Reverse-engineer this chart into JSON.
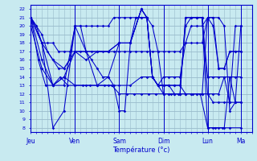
{
  "xlabel": "Température (°c)",
  "bg_color": "#c8eaf0",
  "grid_color": "#99bbcc",
  "line_color": "#0000cc",
  "ylim": [
    7.5,
    22.5
  ],
  "yticks": [
    8,
    9,
    10,
    11,
    12,
    13,
    14,
    15,
    16,
    17,
    18,
    19,
    20,
    21,
    22
  ],
  "day_labels": [
    "Jeu",
    "Ven",
    "Sam",
    "Dim",
    "Lun",
    "Ma"
  ],
  "day_x": [
    0,
    48,
    96,
    144,
    192,
    228
  ],
  "xlim": [
    0,
    240
  ],
  "series": [
    [
      [
        0,
        21
      ],
      [
        6,
        20
      ],
      [
        12,
        19
      ],
      [
        18,
        17
      ],
      [
        24,
        16
      ],
      [
        30,
        15
      ],
      [
        36,
        15
      ],
      [
        42,
        16
      ],
      [
        48,
        20
      ],
      [
        54,
        20
      ],
      [
        60,
        20
      ],
      [
        66,
        20
      ],
      [
        72,
        20
      ],
      [
        78,
        20
      ],
      [
        84,
        20
      ],
      [
        90,
        21
      ],
      [
        96,
        21
      ],
      [
        102,
        21
      ],
      [
        108,
        21
      ],
      [
        114,
        21
      ],
      [
        120,
        21
      ],
      [
        126,
        21
      ],
      [
        132,
        20
      ],
      [
        138,
        17
      ],
      [
        144,
        12
      ],
      [
        150,
        12
      ],
      [
        156,
        12
      ],
      [
        162,
        12
      ],
      [
        168,
        12
      ],
      [
        174,
        12
      ],
      [
        180,
        12
      ],
      [
        186,
        12
      ],
      [
        192,
        12
      ],
      [
        198,
        12
      ],
      [
        204,
        12
      ],
      [
        210,
        14
      ],
      [
        216,
        14
      ],
      [
        222,
        14
      ],
      [
        228,
        14
      ]
    ],
    [
      [
        0,
        21
      ],
      [
        6,
        20
      ],
      [
        12,
        18
      ],
      [
        18,
        18
      ],
      [
        24,
        18
      ],
      [
        30,
        17
      ],
      [
        36,
        17
      ],
      [
        42,
        17
      ],
      [
        48,
        17
      ],
      [
        54,
        17
      ],
      [
        60,
        17
      ],
      [
        66,
        17
      ],
      [
        72,
        17
      ],
      [
        78,
        17
      ],
      [
        84,
        17
      ],
      [
        90,
        17
      ],
      [
        96,
        17
      ],
      [
        102,
        17
      ],
      [
        108,
        17
      ],
      [
        114,
        17
      ],
      [
        120,
        17
      ],
      [
        126,
        17
      ],
      [
        132,
        17
      ],
      [
        138,
        17
      ],
      [
        144,
        17
      ],
      [
        150,
        17
      ],
      [
        156,
        17
      ],
      [
        162,
        17
      ],
      [
        168,
        18
      ],
      [
        174,
        18
      ],
      [
        180,
        18
      ],
      [
        186,
        18
      ],
      [
        192,
        21
      ],
      [
        198,
        21
      ],
      [
        204,
        21
      ],
      [
        210,
        20
      ],
      [
        216,
        10
      ],
      [
        222,
        11
      ],
      [
        228,
        11
      ]
    ],
    [
      [
        0,
        21
      ],
      [
        8,
        16
      ],
      [
        16,
        13
      ],
      [
        24,
        13
      ],
      [
        32,
        14
      ],
      [
        40,
        13
      ],
      [
        48,
        13
      ],
      [
        56,
        13
      ],
      [
        64,
        13
      ],
      [
        72,
        13
      ],
      [
        80,
        13
      ],
      [
        88,
        13
      ],
      [
        96,
        12
      ],
      [
        104,
        12
      ],
      [
        112,
        12
      ],
      [
        120,
        12
      ],
      [
        128,
        12
      ],
      [
        136,
        12
      ],
      [
        144,
        12
      ],
      [
        152,
        12
      ],
      [
        160,
        12
      ],
      [
        168,
        12
      ],
      [
        176,
        12
      ],
      [
        184,
        12
      ],
      [
        192,
        8
      ],
      [
        200,
        8
      ],
      [
        208,
        8
      ],
      [
        216,
        8
      ],
      [
        228,
        8
      ]
    ],
    [
      [
        0,
        21
      ],
      [
        12,
        18
      ],
      [
        24,
        8
      ],
      [
        36,
        10
      ],
      [
        48,
        20
      ],
      [
        54,
        20
      ],
      [
        60,
        17
      ],
      [
        66,
        16
      ],
      [
        72,
        15
      ],
      [
        78,
        14
      ],
      [
        84,
        14
      ],
      [
        90,
        13
      ],
      [
        96,
        10
      ],
      [
        102,
        10
      ],
      [
        108,
        18
      ],
      [
        114,
        21
      ],
      [
        120,
        21
      ],
      [
        126,
        21
      ],
      [
        132,
        14
      ],
      [
        138,
        13
      ],
      [
        144,
        12
      ],
      [
        150,
        12
      ],
      [
        156,
        12
      ],
      [
        162,
        12
      ],
      [
        168,
        21
      ],
      [
        174,
        21
      ],
      [
        180,
        21
      ],
      [
        186,
        21
      ],
      [
        192,
        8
      ],
      [
        198,
        8
      ],
      [
        204,
        8
      ],
      [
        210,
        8
      ],
      [
        216,
        14
      ],
      [
        222,
        11
      ],
      [
        228,
        11
      ]
    ],
    [
      [
        0,
        21
      ],
      [
        12,
        18
      ],
      [
        24,
        13
      ],
      [
        36,
        13
      ],
      [
        48,
        20
      ],
      [
        60,
        17
      ],
      [
        72,
        13
      ],
      [
        84,
        14
      ],
      [
        96,
        18
      ],
      [
        108,
        18
      ],
      [
        120,
        22
      ],
      [
        126,
        21
      ],
      [
        132,
        14
      ],
      [
        138,
        13
      ],
      [
        144,
        13
      ],
      [
        150,
        13
      ],
      [
        156,
        13
      ],
      [
        162,
        13
      ],
      [
        168,
        20
      ],
      [
        174,
        21
      ],
      [
        180,
        21
      ],
      [
        186,
        21
      ],
      [
        192,
        14
      ],
      [
        198,
        14
      ],
      [
        204,
        14
      ],
      [
        210,
        14
      ],
      [
        216,
        11
      ],
      [
        222,
        11
      ],
      [
        228,
        20
      ]
    ],
    [
      [
        0,
        21
      ],
      [
        12,
        18
      ],
      [
        24,
        16
      ],
      [
        36,
        15
      ],
      [
        48,
        17
      ],
      [
        60,
        16
      ],
      [
        72,
        17
      ],
      [
        84,
        17
      ],
      [
        96,
        18
      ],
      [
        108,
        18
      ],
      [
        120,
        22
      ],
      [
        126,
        21
      ],
      [
        132,
        14
      ],
      [
        138,
        13
      ],
      [
        144,
        13
      ],
      [
        150,
        13
      ],
      [
        156,
        12
      ],
      [
        162,
        12
      ],
      [
        168,
        21
      ],
      [
        174,
        21
      ],
      [
        180,
        21
      ],
      [
        186,
        21
      ],
      [
        192,
        12
      ],
      [
        198,
        11
      ],
      [
        204,
        11
      ],
      [
        210,
        11
      ],
      [
        216,
        11
      ],
      [
        222,
        20
      ],
      [
        228,
        20
      ]
    ],
    [
      [
        0,
        21
      ],
      [
        12,
        16
      ],
      [
        24,
        13
      ],
      [
        36,
        14
      ],
      [
        48,
        17
      ],
      [
        60,
        17
      ],
      [
        72,
        17
      ],
      [
        84,
        17
      ],
      [
        96,
        18
      ],
      [
        108,
        18
      ],
      [
        120,
        22
      ],
      [
        126,
        21
      ],
      [
        132,
        14
      ],
      [
        138,
        13
      ],
      [
        144,
        14
      ],
      [
        150,
        14
      ],
      [
        156,
        14
      ],
      [
        162,
        14
      ],
      [
        168,
        18
      ],
      [
        174,
        20
      ],
      [
        180,
        20
      ],
      [
        186,
        20
      ],
      [
        192,
        21
      ],
      [
        198,
        20
      ],
      [
        204,
        15
      ],
      [
        210,
        15
      ],
      [
        216,
        17
      ],
      [
        222,
        17
      ],
      [
        228,
        17
      ]
    ],
    [
      [
        0,
        20
      ],
      [
        12,
        15
      ],
      [
        24,
        13
      ],
      [
        36,
        14
      ],
      [
        48,
        13
      ],
      [
        60,
        13
      ],
      [
        72,
        13
      ],
      [
        84,
        13
      ],
      [
        96,
        13
      ],
      [
        108,
        13
      ],
      [
        120,
        14
      ],
      [
        126,
        14
      ],
      [
        132,
        14
      ],
      [
        138,
        13
      ],
      [
        144,
        13
      ],
      [
        150,
        13
      ],
      [
        156,
        13
      ],
      [
        162,
        13
      ],
      [
        168,
        12
      ],
      [
        174,
        12
      ],
      [
        180,
        12
      ],
      [
        186,
        12
      ],
      [
        192,
        21
      ],
      [
        198,
        21
      ],
      [
        204,
        15
      ],
      [
        210,
        15
      ],
      [
        216,
        17
      ],
      [
        222,
        17
      ],
      [
        228,
        17
      ]
    ]
  ]
}
